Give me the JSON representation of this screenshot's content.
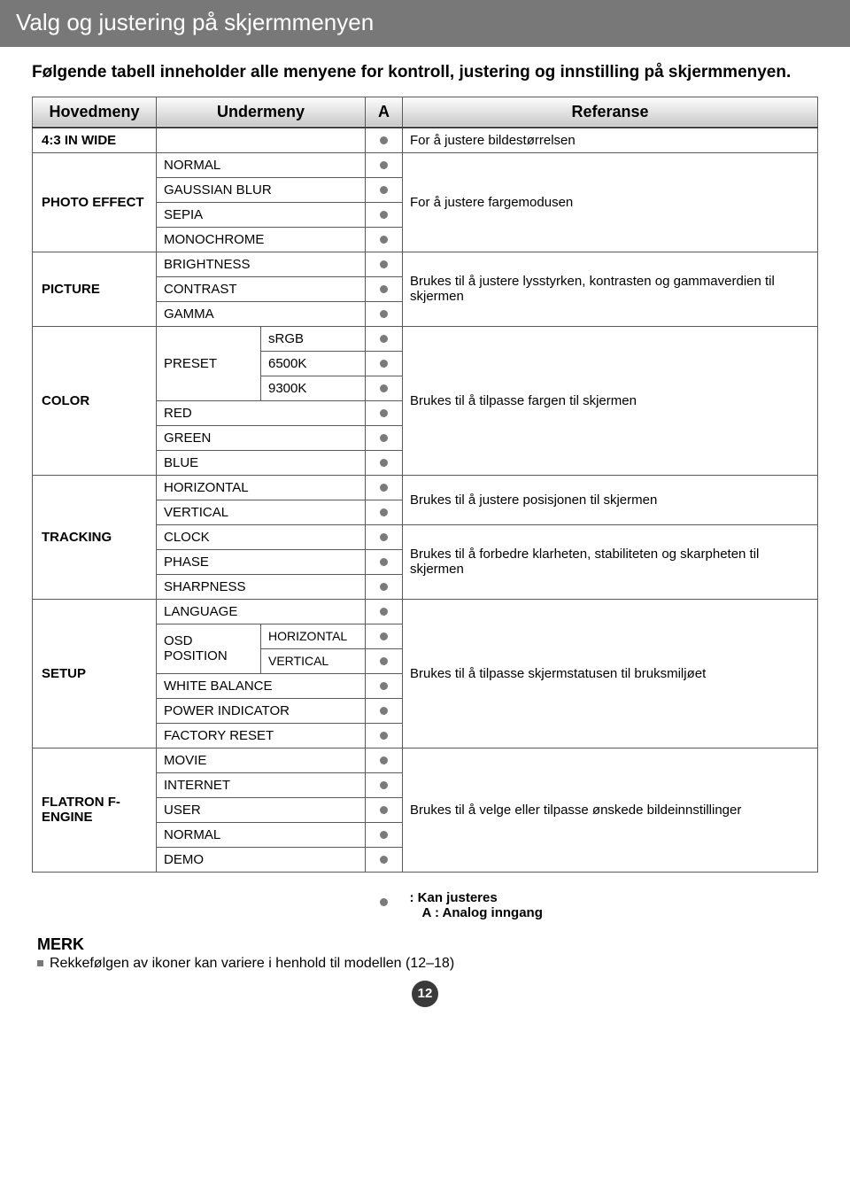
{
  "banner": "Valg og justering på skjermmenyen",
  "intro": "Følgende tabell inneholder alle menyene for kontroll, justering og innstilling på skjermmenyen.",
  "head": {
    "c1": "Hovedmeny",
    "c2": "Undermeny",
    "c3": "A",
    "c4": "Referanse"
  },
  "r": {
    "inwide": "4:3 IN WIDE",
    "ref_inwide": "For å justere bildestørrelsen",
    "photo_effect": "PHOTO EFFECT",
    "normal": "NORMAL",
    "gaussian": "GAUSSIAN BLUR",
    "sepia": "SEPIA",
    "monochrome": "MONOCHROME",
    "ref_photo": "For å justere fargemodusen",
    "picture": "PICTURE",
    "brightness": "BRIGHTNESS",
    "contrast": "CONTRAST",
    "gamma": "GAMMA",
    "ref_picture": "Brukes til å justere lysstyrken, kontrasten og gammaverdien til skjermen",
    "color": "COLOR",
    "preset": "PRESET",
    "srgb": "sRGB",
    "k6500": "6500K",
    "k9300": "9300K",
    "red": "RED",
    "green": "GREEN",
    "blue": "BLUE",
    "ref_color": "Brukes til å tilpasse fargen til skjermen",
    "tracking": "TRACKING",
    "horizontal": "HORIZONTAL",
    "vertical": "VERTICAL",
    "ref_pos": "Brukes til å justere posisjonen til skjermen",
    "clock": "CLOCK",
    "phase": "PHASE",
    "sharpness": "SHARPNESS",
    "ref_track": "Brukes til å forbedre klarheten, stabiliteten og skarpheten til skjermen",
    "setup": "SETUP",
    "language": "LANGUAGE",
    "osd_position": "OSD POSITION",
    "osd_h": "HORIZONTAL",
    "osd_v": "VERTICAL",
    "white_balance": "WHITE BALANCE",
    "power_indicator": "POWER INDICATOR",
    "factory_reset": "FACTORY RESET",
    "ref_setup": "Brukes til å tilpasse skjermstatusen til bruksmiljøet",
    "flatron": "FLATRON F-ENGINE",
    "movie": "MOVIE",
    "internet": "INTERNET",
    "user": "USER",
    "normal2": "NORMAL",
    "demo": "DEMO",
    "ref_flatron": "Brukes til å velge eller tilpasse ønskede bildeinnstillinger"
  },
  "legend": {
    "line1": ": Kan justeres",
    "line2": "A : Analog inngang"
  },
  "merk": {
    "title": "MERK",
    "line": "Rekkefølgen av ikoner kan variere i henhold til modellen (12–18)"
  },
  "page": "12",
  "style": {
    "banner_bg": "#787878",
    "dot_color": "#7a7a7a",
    "border_color": "#5b5b5b"
  }
}
